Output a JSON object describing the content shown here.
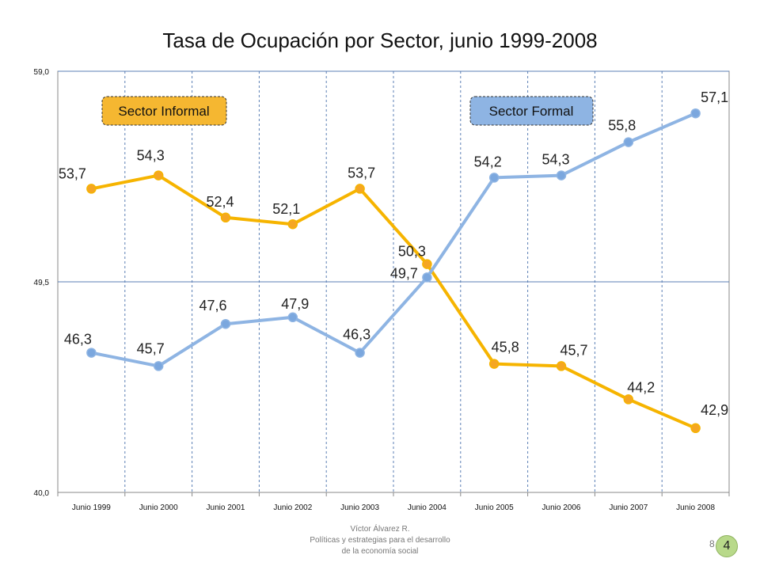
{
  "chart_data": {
    "type": "line",
    "title": "Tasa de Ocupación por Sector, junio 1999-2008",
    "categories": [
      "Junio 1999",
      "Junio 2000",
      "Junio 2001",
      "Junio 2002",
      "Junio 2003",
      "Junio 2004",
      "Junio 2005",
      "Junio 2006",
      "Junio 2007",
      "Junio 2008"
    ],
    "yticks": [
      "40,0",
      "49,5",
      "59,0"
    ],
    "ylim": [
      40.0,
      59.0
    ],
    "grid": true,
    "series": [
      {
        "name": "Sector Informal",
        "color": "#f6b400",
        "marker_color": "#f5a623",
        "values": [
          53.7,
          54.3,
          52.4,
          52.1,
          53.7,
          50.3,
          45.8,
          45.7,
          44.2,
          42.9
        ],
        "labels": [
          "53,7",
          "54,3",
          "52,4",
          "52,1",
          "53,7",
          "50,3",
          "45,8",
          "45,7",
          "44,2",
          "42,9"
        ]
      },
      {
        "name": "Sector Formal",
        "color": "#8eb4e3",
        "marker_color": "#7ba7de",
        "values": [
          46.3,
          45.7,
          47.6,
          47.9,
          46.3,
          49.7,
          54.2,
          54.3,
          55.8,
          57.1
        ],
        "labels": [
          "46,3",
          "45,7",
          "47,6",
          "47,9",
          "46,3",
          "49,7",
          "54,2",
          "54,3",
          "55,8",
          "57,1"
        ]
      }
    ]
  },
  "footer": {
    "author": "Víctor Álvarez R.",
    "line2": "Políticas y estrategias para el desarrollo",
    "line3": "de la economía social",
    "page_number": "8",
    "badge_number": "4"
  }
}
